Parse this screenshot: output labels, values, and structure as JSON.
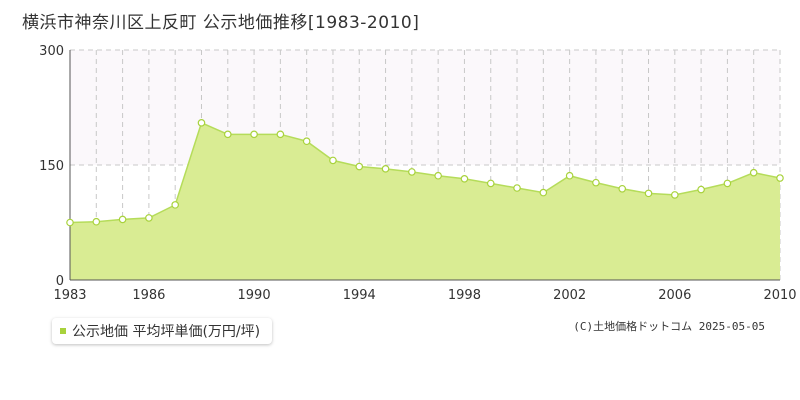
{
  "title": "横浜市神奈川区上反町 公示地価推移[1983-2010]",
  "legend": {
    "label": "公示地価 平均坪単価(万円/坪)"
  },
  "credit": "(C)土地価格ドットコム 2025-05-05",
  "colors": {
    "area_fill": "#d9ec93",
    "line": "#b5dc5a",
    "marker_fill": "#ffffff",
    "marker_stroke": "#a8d23c",
    "grid": "#c8c8c8",
    "axis": "#555555",
    "band": "#fbf8fb"
  },
  "chart_data": {
    "type": "area",
    "title": "横浜市神奈川区上反町 公示地価推移[1983-2010]",
    "xlabel": "",
    "ylabel": "",
    "x": [
      1983,
      1984,
      1985,
      1986,
      1987,
      1988,
      1989,
      1990,
      1991,
      1992,
      1993,
      1994,
      1995,
      1996,
      1997,
      1998,
      1999,
      2000,
      2001,
      2002,
      2003,
      2004,
      2005,
      2006,
      2007,
      2008,
      2009,
      2010
    ],
    "series": [
      {
        "name": "公示地価 平均坪単価(万円/坪)",
        "values": [
          75,
          76,
          79,
          81,
          98,
          205,
          190,
          190,
          190,
          181,
          156,
          148,
          145,
          141,
          136,
          132,
          126,
          120,
          114,
          136,
          127,
          119,
          113,
          111,
          118,
          126,
          140,
          133
        ]
      }
    ],
    "xlim": [
      1983,
      2010
    ],
    "ylim": [
      0,
      300
    ],
    "x_ticks": [
      "1983",
      "1986",
      "1990",
      "1994",
      "1998",
      "2002",
      "2006",
      "2010"
    ],
    "y_ticks": [
      "0",
      "150",
      "300"
    ],
    "grid": true,
    "legend_position": "bottom-left"
  }
}
